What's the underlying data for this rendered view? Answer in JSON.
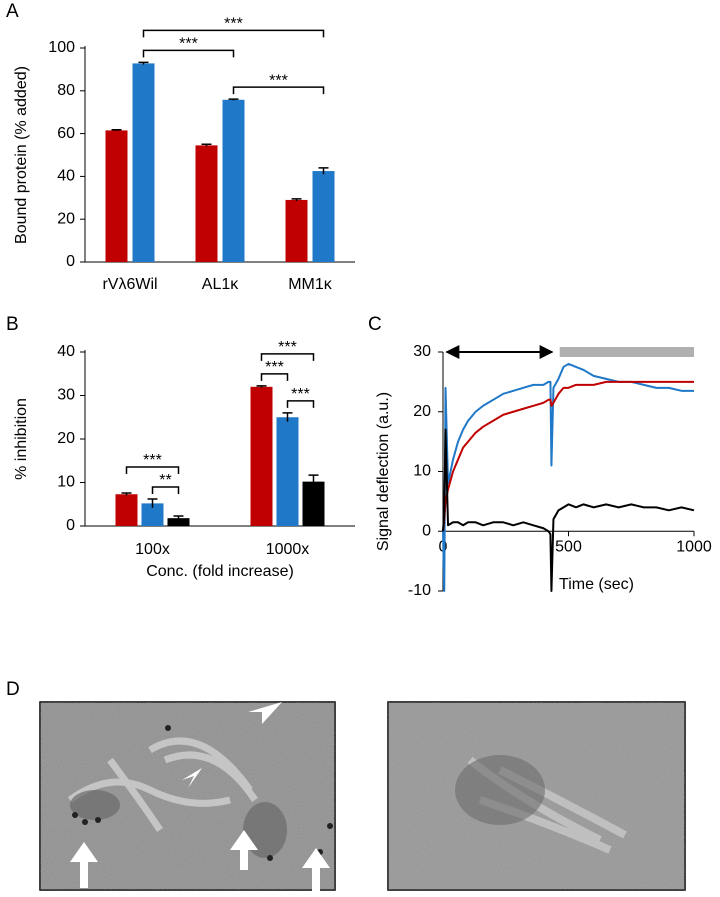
{
  "chart_data": [
    {
      "type": "bar",
      "panel_label": "A",
      "ylabel": "Bound protein (% added)",
      "categories": [
        "rVλ6Wil",
        "AL1κ",
        "MM1κ"
      ],
      "series": [
        {
          "color": "#c00000",
          "values": [
            61.5,
            54.5,
            29
          ],
          "errors": [
            0.3,
            0.5,
            0.5
          ]
        },
        {
          "color": "#1f78c8",
          "values": [
            92.8,
            75.8,
            42.5
          ],
          "errors": [
            0.5,
            0.3,
            1.5
          ]
        }
      ],
      "ylim": [
        0,
        100
      ],
      "yticks": [
        0,
        20,
        40,
        60,
        80,
        100
      ],
      "significance": [
        {
          "text": "***",
          "from": [
            1,
            1
          ],
          "to": [
            2,
            1
          ]
        },
        {
          "text": "***",
          "from": [
            0,
            1
          ],
          "to": [
            1,
            1
          ]
        },
        {
          "text": "***",
          "from": [
            0,
            1
          ],
          "to": [
            2,
            1
          ]
        }
      ]
    },
    {
      "type": "bar",
      "panel_label": "B",
      "ylabel": "% inhibition",
      "xlabel": "Conc. (fold increase)",
      "categories": [
        "100x",
        "1000x"
      ],
      "series": [
        {
          "color": "#c00000",
          "values": [
            7.3,
            32
          ],
          "errors": [
            0.3,
            0.2
          ]
        },
        {
          "color": "#1f78c8",
          "values": [
            5.2,
            25
          ],
          "errors": [
            1,
            1
          ]
        },
        {
          "color": "#000000",
          "values": [
            1.8,
            10.2
          ],
          "errors": [
            0.5,
            1.5
          ]
        }
      ],
      "ylim": [
        0,
        40
      ],
      "yticks": [
        0,
        10,
        20,
        30,
        40
      ],
      "significance": [
        {
          "text": "**",
          "from": [
            0,
            1
          ],
          "to": [
            0,
            2
          ]
        },
        {
          "text": "***",
          "from": [
            0,
            0
          ],
          "to": [
            0,
            2
          ]
        },
        {
          "text": "***",
          "from": [
            1,
            1
          ],
          "to": [
            1,
            2
          ]
        },
        {
          "text": "***",
          "from": [
            1,
            0
          ],
          "to": [
            1,
            1
          ]
        },
        {
          "text": "***",
          "from": [
            1,
            0
          ],
          "to": [
            1,
            2
          ]
        }
      ]
    },
    {
      "type": "line",
      "panel_label": "C",
      "ylabel": "Signal deflection (a.u.)",
      "xlabel": "Time (sec)",
      "x": [
        0,
        5,
        10,
        20,
        40,
        60,
        80,
        100,
        130,
        160,
        200,
        240,
        280,
        320,
        360,
        400,
        420,
        428,
        432,
        440,
        460,
        480,
        500,
        530,
        560,
        600,
        650,
        700,
        750,
        800,
        850,
        900,
        950,
        1000
      ],
      "series": [
        {
          "color": "#1f78c8",
          "values": [
            0,
            -10,
            24,
            8,
            12,
            15,
            17,
            18.5,
            20,
            21,
            22,
            23,
            23.5,
            24,
            24.5,
            24.5,
            25,
            25,
            11,
            24,
            25.5,
            27.5,
            28,
            27.5,
            27,
            26,
            25.5,
            25,
            25,
            24.5,
            24,
            24,
            23.5,
            23.5
          ]
        },
        {
          "color": "#c00000",
          "values": [
            0,
            2,
            5,
            7,
            10,
            12,
            14,
            15,
            16.5,
            17.5,
            18.5,
            19.5,
            20,
            20.5,
            21,
            21.5,
            22,
            22,
            21,
            21.5,
            23,
            24,
            24,
            24.5,
            24.5,
            24.5,
            25,
            25,
            25,
            25,
            25,
            25,
            25,
            25
          ]
        },
        {
          "color": "#000000",
          "values": [
            0,
            3,
            17,
            1,
            1.5,
            1.5,
            1,
            1.5,
            1.5,
            1,
            1.5,
            1.5,
            1,
            1.5,
            1,
            0.5,
            0,
            -0.5,
            -10,
            2,
            3.5,
            4,
            4.5,
            4,
            4.5,
            4,
            4.5,
            4,
            4.5,
            4,
            4,
            3.5,
            4,
            3.5
          ]
        }
      ],
      "xlim": [
        0,
        1000
      ],
      "xticks": [
        0,
        500,
        1000
      ],
      "ylim": [
        -10,
        30
      ],
      "yticks": [
        -10,
        0,
        10,
        20,
        30
      ],
      "annotation_y": 30,
      "arrow_x": [
        15,
        435
      ],
      "bar_x": [
        465,
        1000
      ],
      "bar_color": "#b0b0b0"
    }
  ],
  "panel_d": {
    "label": "D"
  }
}
